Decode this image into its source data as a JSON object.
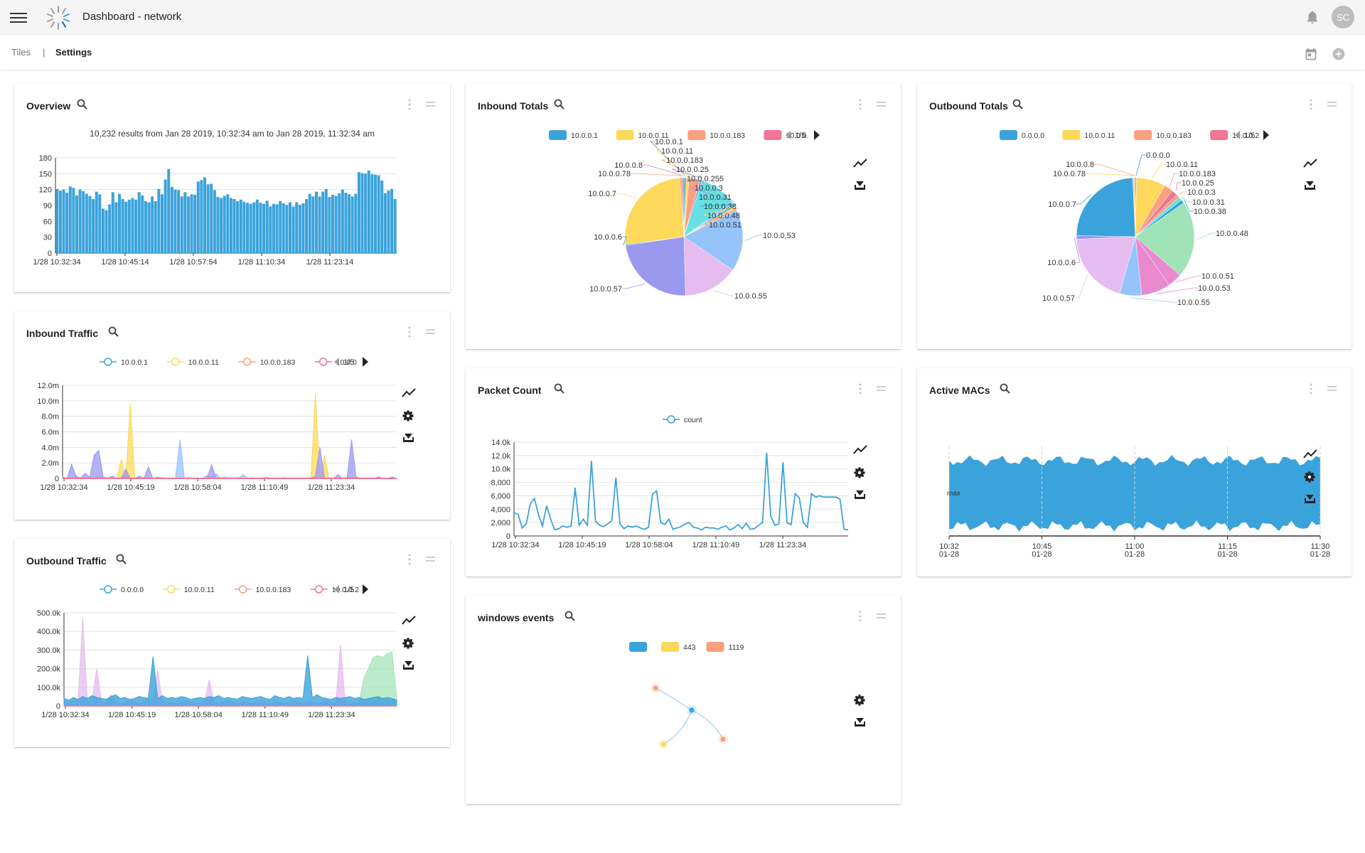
{
  "header": {
    "title": "Dashboard - network",
    "avatar_initials": "SC"
  },
  "tabs": {
    "tiles": "Tiles",
    "separator": "|",
    "settings": "Settings"
  },
  "colors": {
    "blue": "#3ba3db",
    "yellow": "#fdd85a",
    "salmon": "#f9a07e",
    "pink": "#f17594",
    "purple": "#9b98f0",
    "lilac": "#e4bcef",
    "lightblue": "#96c3f9",
    "cyan": "#66e0e2",
    "green": "#9fe3b6",
    "magenta": "#e98ad1"
  },
  "overview": {
    "title": "Overview",
    "subtitle": "10,232 results from Jan 28 2019, 10:32:34 am to Jan 28 2019, 11:32:34 am",
    "chart_data": {
      "type": "bar",
      "yticks": [
        "180",
        "150",
        "120",
        "90",
        "60",
        "30",
        "0"
      ],
      "ylim": [
        0,
        180
      ],
      "xticks": [
        "1/28 10:32:34",
        "1/28 10:45:14",
        "1/28 10:57:54",
        "1/28 11:10:34",
        "1/28 11:23:14"
      ],
      "values": [
        121,
        118,
        120,
        114,
        126,
        123,
        109,
        120,
        117,
        112,
        108,
        102,
        116,
        111,
        84,
        81,
        92,
        115,
        96,
        112,
        102,
        97,
        101,
        104,
        101,
        115,
        109,
        98,
        96,
        107,
        98,
        121,
        111,
        139,
        159,
        125,
        120,
        119,
        107,
        115,
        107,
        111,
        110,
        135,
        138,
        143,
        130,
        131,
        119,
        106,
        104,
        108,
        111,
        104,
        102,
        98,
        101,
        97,
        95,
        93,
        96,
        101,
        95,
        93,
        99,
        88,
        93,
        92,
        98,
        94,
        91,
        96,
        88,
        96,
        91,
        94,
        102,
        112,
        107,
        116,
        107,
        116,
        121,
        106,
        110,
        108,
        113,
        120,
        114,
        111,
        107,
        112,
        153,
        151,
        150,
        156,
        149,
        148,
        147,
        137,
        113,
        118,
        121,
        102
      ]
    }
  },
  "inbound_totals": {
    "title": "Inbound Totals",
    "legend": [
      "10.0.0.1",
      "10.0.0.11",
      "10.0.0.183",
      "10.0.0."
    ],
    "pager": "1/5",
    "chart_data": {
      "type": "pie",
      "slices": [
        {
          "label": "10.0.0.1",
          "value": 0.6
        },
        {
          "label": "10.0.0.11",
          "value": 0.8
        },
        {
          "label": "10.0.0.183",
          "value": 3.0
        },
        {
          "label": "10.0.0.25",
          "value": 0.6
        },
        {
          "label": "10.0.0.255",
          "value": 10.0
        },
        {
          "label": "10.0.0.3",
          "value": 0.5
        },
        {
          "label": "10.0.0.31",
          "value": 0.5
        },
        {
          "label": "10.0.0.38",
          "value": 0.5
        },
        {
          "label": "10.0.0.48",
          "value": 0.5
        },
        {
          "label": "10.0.0.51",
          "value": 0.5
        },
        {
          "label": "10.0.0.53",
          "value": 17.0
        },
        {
          "label": "10.0.0.55",
          "value": 15.0
        },
        {
          "label": "10.0.0.57",
          "value": 23.0
        },
        {
          "label": "10.0.0.6",
          "value": 0.3
        },
        {
          "label": "10.0.0.7",
          "value": 26.0
        },
        {
          "label": "10.0.0.78",
          "value": 0.6
        },
        {
          "label": "10.0.0.8",
          "value": 0.5
        }
      ]
    }
  },
  "outbound_totals": {
    "title": "Outbound Totals",
    "legend": [
      "0.0.0.0",
      "10.0.0.11",
      "10.0.0.183",
      "10.0.0.2"
    ],
    "pager": "1/5",
    "chart_data": {
      "type": "pie",
      "slices": [
        {
          "label": "0.0.0.0",
          "value": 0.3
        },
        {
          "label": "10.0.0.11",
          "value": 8.0
        },
        {
          "label": "10.0.0.183",
          "value": 2.5
        },
        {
          "label": "10.0.0.25",
          "value": 1.5
        },
        {
          "label": "10.0.0.3",
          "value": 1.0
        },
        {
          "label": "10.0.0.31",
          "value": 1.0
        },
        {
          "label": "10.0.0.38",
          "value": 1.0
        },
        {
          "label": "10.0.0.48",
          "value": 21.0
        },
        {
          "label": "10.0.0.51",
          "value": 4.0
        },
        {
          "label": "10.0.0.53",
          "value": 8.0
        },
        {
          "label": "10.0.0.55",
          "value": 6.0
        },
        {
          "label": "10.0.0.57",
          "value": 20.0
        },
        {
          "label": "10.0.0.6",
          "value": 1.0
        },
        {
          "label": "10.0.0.7",
          "value": 24.0
        },
        {
          "label": "10.0.0.78",
          "value": 0.4
        },
        {
          "label": "10.0.0.8",
          "value": 0.3
        }
      ]
    }
  },
  "inbound_traffic": {
    "title": "Inbound Traffic",
    "legend": [
      "10.0.0.1",
      "10.0.0.11",
      "10.0.0.183",
      "10.0.0"
    ],
    "pager": "1/5",
    "chart_data": {
      "type": "area",
      "yticks": [
        "12.0m",
        "10.0m",
        "8.0m",
        "6.0m",
        "4.0m",
        "2.0m",
        "0"
      ],
      "ylim": [
        0,
        12000000
      ],
      "xticks": [
        "1/28 10:32:34",
        "1/28 10:45:19",
        "1/28 10:58:04",
        "1/28 11:10:49",
        "1/28 11:23:34"
      ],
      "series": [
        {
          "name": "10.0.0.1",
          "values": [
            0.1,
            0,
            0,
            0.2,
            0.1,
            0,
            0,
            0,
            0.3,
            0,
            0,
            0,
            0,
            0,
            0.1,
            0,
            0,
            0,
            0.1,
            0,
            0,
            0.2,
            0,
            0,
            0,
            0,
            5.0,
            0,
            0,
            0,
            0,
            0,
            0.4,
            0,
            0.6,
            0,
            0.2,
            0,
            0.1,
            0,
            0.5,
            0,
            0.1,
            0,
            0,
            0.1,
            0,
            0,
            0,
            0.1,
            0,
            0,
            0,
            0,
            0,
            0.1,
            0,
            0,
            0,
            0.1,
            0,
            0,
            0,
            0.1,
            0,
            0,
            0,
            0,
            0,
            0,
            0,
            0,
            0,
            0.2,
            0
          ]
        },
        {
          "name": "10.0.0.11",
          "values": [
            0,
            0,
            0,
            0,
            0,
            0,
            0,
            0,
            0,
            0,
            0,
            0,
            0,
            2.5,
            0,
            9.6,
            0,
            0,
            0,
            0,
            0,
            0,
            0,
            0,
            0,
            0,
            0,
            0,
            0,
            0,
            0,
            0,
            0,
            0,
            0,
            0,
            0,
            0,
            0,
            0,
            0,
            0,
            0,
            0,
            0,
            0,
            0,
            0,
            0,
            0,
            0,
            0,
            0,
            0,
            0,
            0,
            10.9,
            0,
            3.0,
            0,
            0,
            0,
            0,
            0,
            0,
            0,
            0,
            0,
            0,
            0,
            0,
            0,
            0,
            0,
            0
          ]
        },
        {
          "name": "10.0.0.183",
          "values": [
            0.1,
            0,
            0,
            0,
            0,
            0,
            0,
            0,
            0,
            0,
            0,
            0,
            0,
            0,
            0.2,
            0,
            0,
            0,
            0,
            0,
            0,
            0,
            0,
            0,
            0,
            0,
            0,
            0,
            0,
            0,
            0,
            0,
            0,
            0,
            0,
            0,
            0,
            0,
            0,
            0,
            0,
            0,
            0,
            0,
            0,
            0,
            0,
            0,
            0,
            0,
            0,
            0,
            0,
            0,
            0,
            0,
            0,
            0,
            0,
            0,
            0,
            0,
            0,
            0,
            0,
            0,
            0,
            0,
            0,
            0,
            0,
            0,
            0,
            0,
            0
          ]
        },
        {
          "name": "10.0.0",
          "values": [
            0.2,
            0,
            1.8,
            0.3,
            0,
            0.7,
            0.1,
            3.0,
            3.6,
            0.2,
            0,
            0.3,
            0,
            0,
            1.2,
            0,
            0,
            0.3,
            0,
            1.5,
            0,
            0,
            0.1,
            0,
            0,
            0,
            0,
            0,
            0.1,
            0,
            0,
            0,
            0,
            1.8,
            0,
            0,
            0,
            0,
            0,
            0.1,
            0,
            0,
            0,
            0,
            0,
            0.1,
            0,
            0,
            0,
            0,
            0,
            0,
            0,
            0,
            0,
            0,
            0.3,
            4.0,
            0,
            0,
            0,
            0.5,
            0,
            0,
            5.0,
            0.2,
            0,
            0,
            0,
            0,
            0.2,
            0,
            0,
            0.1,
            0
          ]
        }
      ]
    }
  },
  "packet_count": {
    "title": "Packet Count",
    "legend": [
      "count"
    ],
    "chart_data": {
      "type": "line",
      "yticks": [
        "14.0k",
        "12.0k",
        "10.0k",
        "8,000",
        "6,000",
        "4,000",
        "2,000",
        "0"
      ],
      "ylim": [
        0,
        14000
      ],
      "xticks": [
        "1/28 10:32:34",
        "1/28 10:45:19",
        "1/28 10:58:04",
        "1/28 11:10:49",
        "1/28 11:23:34"
      ],
      "series": [
        {
          "name": "count",
          "values": [
            3500,
            3200,
            1200,
            1800,
            4800,
            5600,
            3200,
            1500,
            4500,
            2500,
            900,
            1100,
            1500,
            1300,
            1500,
            7200,
            1600,
            2500,
            1600,
            11200,
            2200,
            1600,
            1400,
            1800,
            2300,
            8700,
            1800,
            1100,
            1500,
            1300,
            1500,
            1200,
            1000,
            1300,
            6300,
            6700,
            2000,
            1700,
            2500,
            1000,
            1200,
            1400,
            1800,
            2000,
            1300,
            1200,
            900,
            1300,
            1200,
            1200,
            1000,
            1300,
            1500,
            900,
            1200,
            1700,
            1100,
            1900,
            1000,
            1100,
            1600,
            2000,
            12400,
            3000,
            1600,
            1800,
            11000,
            2000,
            1700,
            6300,
            5700,
            2000,
            1300,
            6300,
            5800,
            6000,
            5800,
            5800,
            5800,
            5800,
            5500,
            1000,
            900
          ]
        }
      ]
    }
  },
  "active_macs": {
    "title": "Active MACs",
    "max_label": "max",
    "chart_data": {
      "type": "area",
      "xticks": [
        [
          "10:32",
          "01-28"
        ],
        [
          "10:45",
          "01-28"
        ],
        [
          "11:00",
          "01-28"
        ],
        [
          "11:15",
          "01-28"
        ],
        [
          "11:30",
          "01-28"
        ]
      ]
    }
  },
  "outbound_traffic": {
    "title": "Outbound Traffic",
    "legend": [
      "0.0.0.0",
      "10.0.0.11",
      "10.0.0.183",
      "10.0.0.2"
    ],
    "pager": "1/5",
    "chart_data": {
      "type": "area",
      "yticks": [
        "500.0k",
        "400.0k",
        "300.0k",
        "200.0k",
        "100.0k",
        "0"
      ],
      "ylim": [
        0,
        500000
      ],
      "xticks": [
        "1/28 10:32:34",
        "1/28 10:45:19",
        "1/28 10:58:04",
        "1/28 11:10:49",
        "1/28 11:23:34"
      ],
      "series": [
        {
          "name": "0.0.0.0",
          "values": [
            40,
            30,
            45,
            35,
            50,
            40,
            55,
            45,
            40,
            35,
            50,
            60,
            40,
            45,
            35,
            40,
            50,
            45,
            40,
            265,
            40,
            55,
            40,
            45,
            40,
            50,
            45,
            35,
            40,
            45,
            40,
            50,
            45,
            55,
            40,
            45,
            40,
            35,
            50,
            45,
            40,
            45,
            50,
            40,
            35,
            55,
            45,
            40,
            50,
            40,
            45,
            40,
            270,
            45,
            60,
            45,
            40,
            35,
            45,
            40,
            45,
            50,
            40,
            45,
            35,
            40,
            45,
            50,
            40,
            45,
            40,
            30
          ]
        },
        {
          "name": "10.0.0.11",
          "values": [
            0,
            0,
            0,
            0,
            0,
            0,
            0,
            0,
            0,
            0,
            0,
            0,
            0,
            0,
            0,
            0,
            0,
            0,
            0,
            0,
            0,
            0,
            0,
            0,
            0,
            0,
            0,
            0,
            0,
            0,
            0,
            0,
            0,
            0,
            0,
            0,
            0,
            0,
            0,
            0,
            0,
            0,
            0,
            0,
            0,
            0,
            0,
            0,
            0,
            0,
            0,
            0,
            0,
            0,
            0,
            0,
            0,
            0,
            0,
            0,
            0,
            0,
            0,
            0,
            0,
            0,
            0,
            0,
            0,
            0,
            0,
            0
          ]
        },
        {
          "name": "10.0.0.183",
          "values": [
            0,
            0,
            0,
            0,
            0,
            0,
            0,
            0,
            0,
            0,
            0,
            0,
            0,
            0,
            0,
            0,
            0,
            0,
            0,
            0,
            0,
            0,
            0,
            0,
            0,
            0,
            0,
            0,
            0,
            0,
            0,
            0,
            0,
            0,
            0,
            0,
            0,
            0,
            0,
            0,
            0,
            0,
            0,
            0,
            0,
            0,
            0,
            0,
            0,
            0,
            0,
            0,
            0,
            0,
            0,
            0,
            0,
            0,
            0,
            0,
            0,
            0,
            0,
            0,
            0,
            0,
            0,
            0,
            0,
            0,
            0,
            0
          ]
        },
        {
          "name": "10.0.0.2",
          "values": [
            20,
            10,
            30,
            20,
            470,
            20,
            30,
            200,
            20,
            10,
            60,
            20,
            10,
            20,
            30,
            20,
            10,
            20,
            40,
            30,
            190,
            20,
            10,
            20,
            10,
            20,
            30,
            20,
            10,
            20,
            20,
            140,
            20,
            10,
            20,
            30,
            20,
            10,
            20,
            20,
            10,
            20,
            30,
            20,
            10,
            20,
            20,
            10,
            20,
            30,
            20,
            10,
            20,
            20,
            10,
            20,
            30,
            20,
            10,
            330,
            20,
            10,
            20,
            10,
            20,
            20,
            10,
            20,
            20,
            10,
            20,
            10
          ]
        }
      ]
    }
  },
  "windows_events": {
    "title": "windows events",
    "legend": [
      "",
      "443",
      "1119"
    ]
  }
}
